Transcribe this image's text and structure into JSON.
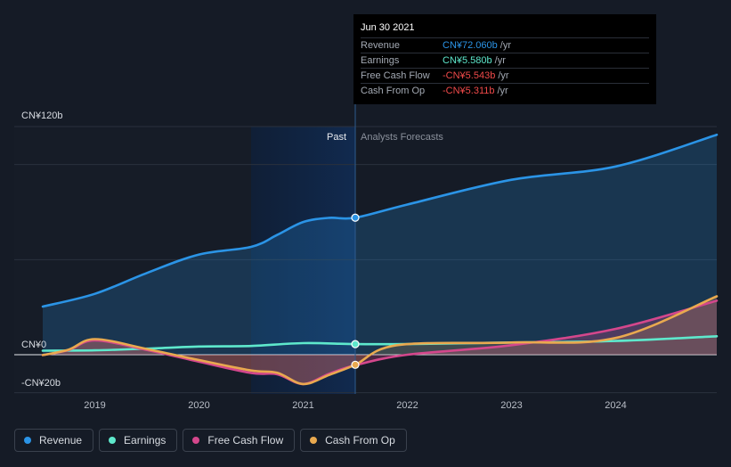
{
  "chart_data": {
    "type": "line",
    "currency_unit": "CN¥ billions",
    "y_ticks": [
      {
        "value": 120,
        "label": "CN¥120b"
      },
      {
        "value": 0,
        "label": "CN¥0"
      },
      {
        "value": -20,
        "label": "-CN¥20b"
      }
    ],
    "ylim": [
      -20,
      120
    ],
    "xlim": [
      2018.5,
      2024.97
    ],
    "x_ticks": [
      {
        "value": 2019,
        "label": "2019"
      },
      {
        "value": 2020,
        "label": "2020"
      },
      {
        "value": 2021,
        "label": "2021"
      },
      {
        "value": 2022,
        "label": "2022"
      },
      {
        "value": 2023,
        "label": "2023"
      },
      {
        "value": 2024,
        "label": "2024"
      }
    ],
    "grid": true,
    "legend_position": "bottom-left",
    "region_labels": {
      "past": "Past",
      "forecast": "Analysts Forecasts"
    },
    "highlight_start": 2020.5,
    "divider_x": 2021.5,
    "series": [
      {
        "name": "Revenue",
        "color": "#2b94e6",
        "points": [
          [
            2018.5,
            25.3
          ],
          [
            2019.0,
            32
          ],
          [
            2019.5,
            43
          ],
          [
            2020.0,
            52.7
          ],
          [
            2020.5,
            56.7
          ],
          [
            2020.75,
            63
          ],
          [
            2021.0,
            69.8
          ],
          [
            2021.25,
            72
          ],
          [
            2021.5,
            72.06
          ],
          [
            2022.0,
            79
          ],
          [
            2023.0,
            92
          ],
          [
            2024.0,
            99
          ],
          [
            2024.97,
            115.7
          ]
        ]
      },
      {
        "name": "Earnings",
        "color": "#5ee8cc",
        "points": [
          [
            2018.5,
            2.1
          ],
          [
            2019.0,
            2.3
          ],
          [
            2019.5,
            3.2
          ],
          [
            2020.0,
            4.3
          ],
          [
            2020.5,
            4.6
          ],
          [
            2021.0,
            6.1
          ],
          [
            2021.5,
            5.58
          ],
          [
            2022.0,
            5.6
          ],
          [
            2023.0,
            6.4
          ],
          [
            2024.0,
            7.2
          ],
          [
            2024.97,
            9.7
          ]
        ]
      },
      {
        "name": "Free Cash Flow",
        "color": "#d4478c",
        "points": [
          [
            2018.5,
            -0.2
          ],
          [
            2018.75,
            2.5
          ],
          [
            2019.0,
            7.5
          ],
          [
            2019.5,
            2.5
          ],
          [
            2020.0,
            -3.7
          ],
          [
            2020.5,
            -9.6
          ],
          [
            2020.75,
            -10.3
          ],
          [
            2021.0,
            -15.4
          ],
          [
            2021.25,
            -10
          ],
          [
            2021.5,
            -5.543
          ],
          [
            2022.0,
            0
          ],
          [
            2023.0,
            5
          ],
          [
            2024.0,
            13.6
          ],
          [
            2024.97,
            28.4
          ]
        ]
      },
      {
        "name": "Cash From Op",
        "color": "#e9a94f",
        "points": [
          [
            2018.5,
            -0.2
          ],
          [
            2018.75,
            2.7
          ],
          [
            2019.0,
            8.2
          ],
          [
            2019.5,
            3
          ],
          [
            2020.0,
            -2.8
          ],
          [
            2020.5,
            -8.3
          ],
          [
            2020.75,
            -9.5
          ],
          [
            2021.0,
            -15.4
          ],
          [
            2021.25,
            -10.6
          ],
          [
            2021.5,
            -5.311
          ],
          [
            2021.9,
            5
          ],
          [
            2023.0,
            6.4
          ],
          [
            2024.0,
            8.8
          ],
          [
            2024.97,
            30.7
          ]
        ]
      }
    ]
  },
  "tooltip": {
    "date": "Jun 30 2021",
    "rows": [
      {
        "label": "Revenue",
        "value": "CN¥72.060b",
        "unit": "/yr",
        "color": "#2b94e6"
      },
      {
        "label": "Earnings",
        "value": "CN¥5.580b",
        "unit": "/yr",
        "color": "#5ee8cc"
      },
      {
        "label": "Free Cash Flow",
        "value": "-CN¥5.543b",
        "unit": "/yr",
        "color": "#f04a4a"
      },
      {
        "label": "Cash From Op",
        "value": "-CN¥5.311b",
        "unit": "/yr",
        "color": "#f04a4a"
      }
    ]
  },
  "legend": [
    {
      "label": "Revenue",
      "color": "#2b94e6"
    },
    {
      "label": "Earnings",
      "color": "#5ee8cc"
    },
    {
      "label": "Free Cash Flow",
      "color": "#d4478c"
    },
    {
      "label": "Cash From Op",
      "color": "#e9a94f"
    }
  ]
}
